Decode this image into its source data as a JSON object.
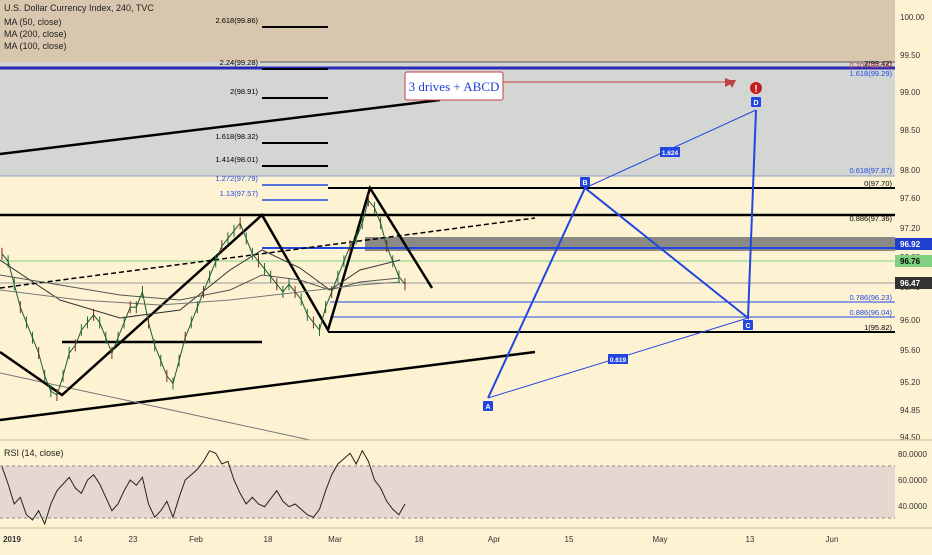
{
  "header": {
    "title": "U.S. Dollar Currency Index, 240, TVC",
    "ma_labels": [
      "MA (50, close)",
      "MA (200, close)",
      "MA (100, close)"
    ]
  },
  "rsi": {
    "title": "RSI (14, close)",
    "axis_ticks": [
      "80.0000",
      "60.0000",
      "40.0000"
    ]
  },
  "callout": {
    "text": "3 drives + ABCD"
  },
  "price_tags": [
    {
      "label": "96.92",
      "color": "#1f3fd0"
    },
    {
      "label": "96.76",
      "color": "#7fd17f"
    },
    {
      "label": "96.47",
      "color": "#333333"
    }
  ],
  "fib_left": [
    "2.618(99.86)",
    "2.24(99.28)",
    "2(98.91)",
    "1.618(98.32)",
    "1.414(98.01)",
    "1.272(97.79)",
    "1.13(97.57)"
  ],
  "fib_right": [
    "2(99.42)",
    "0.707(99.26)",
    "1.618(99.29)",
    "0.618(97.87)",
    "0(97.70)",
    "0.886(97.36)",
    "0.786(96.23)",
    "0.886(96.04)",
    "1(95.82)"
  ],
  "pattern": {
    "points": [
      "A",
      "B",
      "C",
      "D"
    ],
    "ratios": [
      "1.624",
      "0.619"
    ],
    "alert": "!"
  },
  "colors": {
    "background": "#fdf3d3",
    "zone_grey": "#d3d6d3",
    "zone_tan": "#d8c7ae",
    "pattern_blue": "#2147e0",
    "rsi_band": "#e6d7d0"
  },
  "chart_data": {
    "type": "line",
    "title": "U.S. Dollar Currency Index, 240, TVC",
    "x_ticks": [
      "2019",
      "14",
      "23",
      "Feb",
      "18",
      "Mar",
      "18",
      "Apr",
      "15",
      "May",
      "13",
      "Jun"
    ],
    "y_ticks": [
      "100.00",
      "99.50",
      "99.00",
      "98.50",
      "98.00",
      "97.60",
      "97.20",
      "96.80",
      "96.40",
      "96.00",
      "95.60",
      "95.20",
      "94.85",
      "94.50"
    ],
    "ylim": [
      94.5,
      100.1
    ],
    "series": [
      {
        "values": [
          96.9,
          96.8,
          96.5,
          96.2,
          96.0,
          95.8,
          95.6,
          95.3,
          95.1,
          95.05,
          95.3,
          95.6,
          95.7,
          95.9,
          96.0,
          96.1,
          96.0,
          95.8,
          95.6,
          95.8,
          96.0,
          96.2,
          96.2,
          96.4,
          96.0,
          95.7,
          95.5,
          95.3,
          95.2,
          95.5,
          95.8,
          96.0,
          96.2,
          96.4,
          96.6,
          96.8,
          97.0,
          97.1,
          97.2,
          97.3,
          97.1,
          96.9,
          96.8,
          96.7,
          96.6,
          96.5,
          96.4,
          96.5,
          96.4,
          96.3,
          96.1,
          96.0,
          95.9,
          96.2,
          96.4,
          96.6,
          96.8,
          97.0,
          97.1,
          97.3,
          97.6,
          97.5,
          97.3,
          97.0,
          96.8,
          96.6,
          96.5
        ]
      }
    ],
    "rsi_values": [
      68,
      55,
      40,
      45,
      32,
      28,
      35,
      25,
      40,
      50,
      55,
      60,
      52,
      48,
      58,
      62,
      55,
      45,
      35,
      40,
      50,
      58,
      54,
      60,
      40,
      30,
      35,
      42,
      30,
      45,
      58,
      62,
      66,
      72,
      80,
      78,
      70,
      72,
      58,
      48,
      40,
      45,
      40,
      38,
      44,
      50,
      42,
      38,
      40,
      36,
      32,
      30,
      36,
      50,
      62,
      70,
      74,
      78,
      70,
      80,
      72,
      58,
      52,
      42,
      36,
      32,
      40
    ]
  }
}
